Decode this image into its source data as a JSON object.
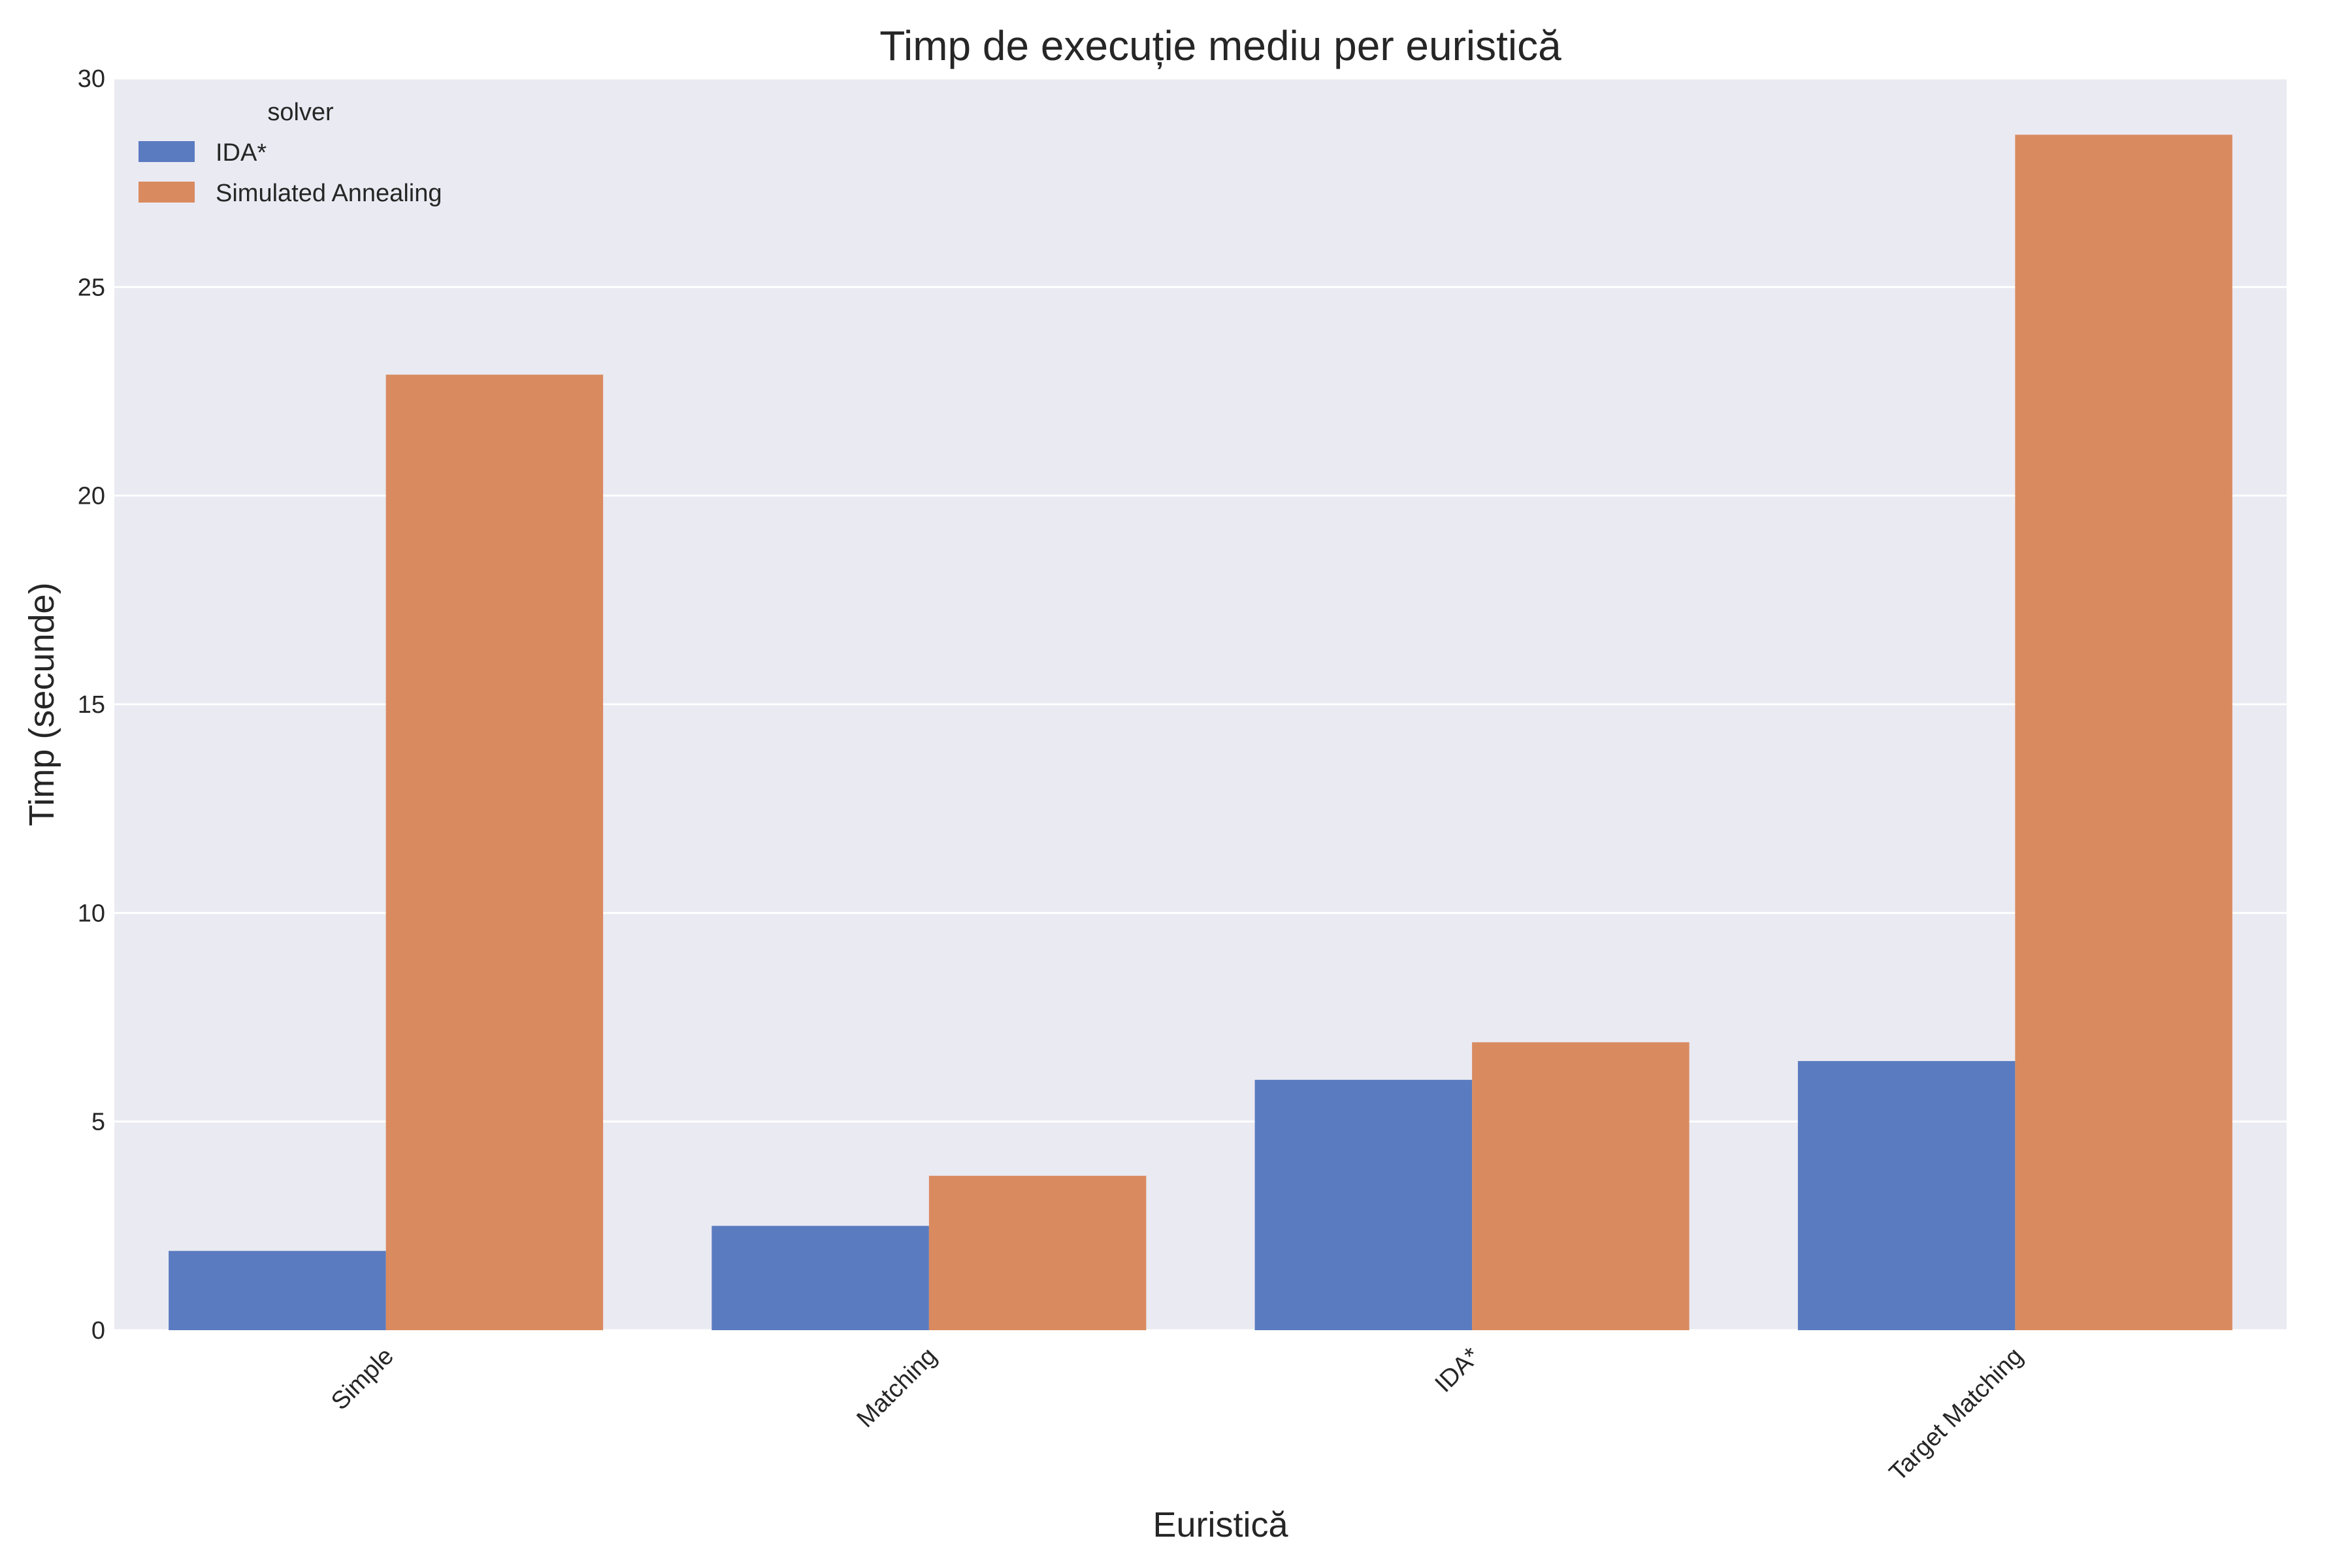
{
  "chart_data": {
    "type": "bar",
    "title": "Timp de execuție mediu per euristică",
    "xlabel": "Euristică",
    "ylabel": "Timp (secunde)",
    "categories": [
      "Simple",
      "Matching",
      "IDA*",
      "Target Matching"
    ],
    "series": [
      {
        "name": "IDA*",
        "values": [
          1.9,
          2.5,
          6.0,
          6.45
        ],
        "color": "#5a7bc0"
      },
      {
        "name": "Simulated Annealing",
        "values": [
          22.9,
          3.7,
          6.9,
          28.65
        ],
        "color": "#d98a5f"
      }
    ],
    "ylim": [
      0,
      30
    ],
    "yticks": [
      0,
      5,
      10,
      15,
      20,
      25,
      30
    ],
    "legend": {
      "title": "solver",
      "position": "top-left"
    },
    "grid": true,
    "background": "#eaeaf2",
    "grid_color": "#ffffff"
  }
}
